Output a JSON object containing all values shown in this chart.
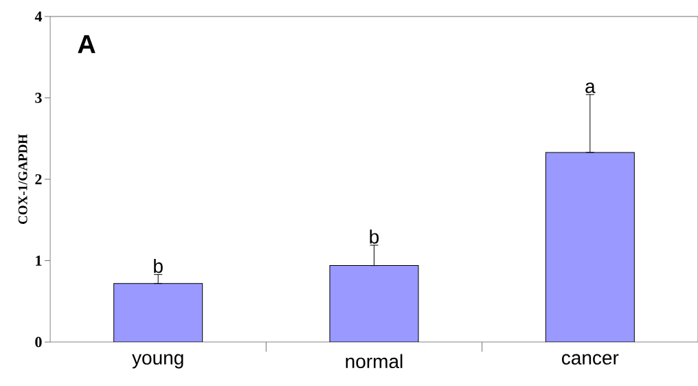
{
  "chart_data": {
    "type": "bar",
    "ylabel": "COX-1/GAPDH",
    "categories": [
      "young",
      "normal",
      "cancer"
    ],
    "values": [
      0.72,
      0.94,
      2.33
    ],
    "errors": [
      [
        0.72,
        0.83
      ],
      [
        0.94,
        1.19
      ],
      [
        2.33,
        3.04
      ]
    ],
    "color": "#9999ff",
    "ylim": [
      0,
      4
    ],
    "yticks": [
      0,
      1,
      2,
      3,
      4
    ],
    "grid": false,
    "annotations": [
      "A",
      {
        "text": "b",
        "x": "young",
        "y": 0.83
      },
      {
        "text": "b",
        "x": "normal",
        "y": 1.19
      },
      {
        "text": "a",
        "x": "cancer",
        "y": 3.04
      }
    ]
  }
}
